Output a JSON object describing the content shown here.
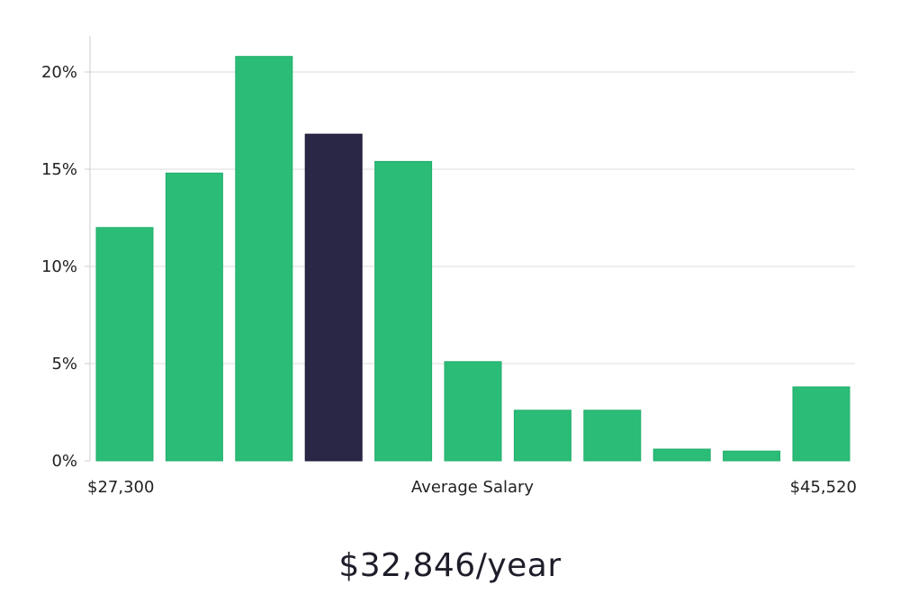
{
  "chart_data": {
    "type": "bar",
    "title": "",
    "xlabel": "Average Salary",
    "ylabel": "",
    "x_min_label": "$27,300",
    "x_max_label": "$45,520",
    "ylim": [
      0,
      22
    ],
    "yticks": [
      0,
      5,
      10,
      15,
      20
    ],
    "ytick_labels": [
      "0%",
      "5%",
      "10%",
      "15%",
      "20%"
    ],
    "values": [
      12.0,
      14.8,
      20.8,
      16.8,
      15.4,
      5.1,
      2.6,
      2.6,
      0.6,
      0.5,
      3.8
    ],
    "highlight_index": 3,
    "colors": {
      "bar": "#2bbd77",
      "highlight": "#2a2746",
      "grid": "#dddddd",
      "axis": "#cccccc"
    }
  },
  "summary": {
    "salary_text": "$32,846/year"
  }
}
